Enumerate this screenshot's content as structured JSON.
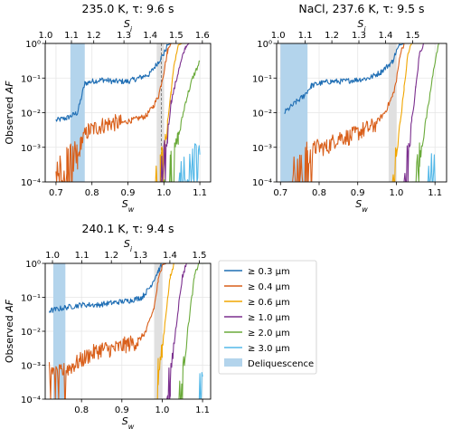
{
  "chart_data": [
    {
      "type": "line",
      "title": "235.0 K, τ: 9.6 s",
      "xlabel": "S",
      "xlabel_sub": "w",
      "ylabel": "Observed ",
      "ylabel_italic": "AF",
      "top_xlabel": "S",
      "top_xlabel_sub": "i",
      "xlim": [
        0.67,
        1.13
      ],
      "ylim": [
        0.0001,
        1
      ],
      "yscale": "log",
      "x_ticks": [
        0.7,
        0.8,
        0.9,
        1.0,
        1.1
      ],
      "x_tick_labels": [
        "0.7",
        "0.8",
        "0.9",
        "1.0",
        "1.1"
      ],
      "top_ticks": [
        0.671,
        0.743,
        0.805,
        0.889,
        0.962,
        1.034,
        1.107
      ],
      "top_tick_labels": [
        "1.0",
        "1.1",
        "1.2",
        "1.3",
        "1.4",
        "1.5",
        "1.6"
      ],
      "y_ticks": [
        0.0001,
        0.001,
        0.01,
        0.1,
        1
      ],
      "y_tick_labels": [
        "10⁻⁴",
        "10⁻³",
        "10⁻²",
        "10⁻¹",
        "10⁰"
      ],
      "deliquescence_band": [
        0.74,
        0.78
      ],
      "grey_band": [
        0.98,
        1.0
      ],
      "dashed_line_x": 0.993,
      "series": [
        {
          "name": "≥ 0.3 µm",
          "color": "#1f6eb4",
          "points": [
            [
              0.7,
              0.006
            ],
            [
              0.73,
              0.007
            ],
            [
              0.76,
              0.01
            ],
            [
              0.78,
              0.07
            ],
            [
              0.8,
              0.08
            ],
            [
              0.83,
              0.09
            ],
            [
              0.86,
              0.08
            ],
            [
              0.9,
              0.08
            ],
            [
              0.93,
              0.1
            ],
            [
              0.96,
              0.13
            ],
            [
              0.985,
              0.3
            ],
            [
              1.0,
              0.5
            ],
            [
              1.01,
              0.9
            ],
            [
              1.02,
              1
            ],
            [
              1.11,
              1
            ]
          ]
        },
        {
          "name": "≥ 0.4 µm",
          "color": "#d95f1a",
          "points": [
            [
              0.7,
              0.0003
            ],
            [
              0.73,
              0.0003
            ],
            [
              0.76,
              0.0004
            ],
            [
              0.77,
              0.0015
            ],
            [
              0.79,
              0.003
            ],
            [
              0.82,
              0.004
            ],
            [
              0.85,
              0.005
            ],
            [
              0.88,
              0.005
            ],
            [
              0.91,
              0.006
            ],
            [
              0.95,
              0.008
            ],
            [
              0.97,
              0.015
            ],
            [
              0.985,
              0.03
            ],
            [
              1.0,
              0.15
            ],
            [
              1.01,
              0.6
            ],
            [
              1.02,
              1
            ],
            [
              1.11,
              1
            ]
          ]
        },
        {
          "name": "≥ 0.6 µm",
          "color": "#f0a500",
          "points": [
            [
              0.975,
              0.0001
            ],
            [
              0.99,
              0.0002
            ],
            [
              1.0,
              0.0006
            ],
            [
              1.01,
              0.005
            ],
            [
              1.02,
              0.04
            ],
            [
              1.03,
              0.3
            ],
            [
              1.04,
              0.9
            ],
            [
              1.05,
              1
            ],
            [
              1.11,
              1
            ]
          ]
        },
        {
          "name": "≥ 1.0 µm",
          "color": "#7b2f8e",
          "points": [
            [
              0.99,
              0.0001
            ],
            [
              1.0,
              0.0003
            ],
            [
              1.01,
              0.002
            ],
            [
              1.02,
              0.02
            ],
            [
              1.04,
              0.15
            ],
            [
              1.06,
              0.8
            ],
            [
              1.07,
              1
            ],
            [
              1.11,
              1
            ]
          ]
        },
        {
          "name": "≥ 2.0 µm",
          "color": "#6aaa3a",
          "points": [
            [
              1.0,
              0.0001
            ],
            [
              1.02,
              0.0003
            ],
            [
              1.04,
              0.002
            ],
            [
              1.06,
              0.02
            ],
            [
              1.08,
              0.1
            ],
            [
              1.1,
              0.3
            ]
          ]
        },
        {
          "name": "≥ 3.0 µm",
          "color": "#54b8e8",
          "points": [
            [
              1.04,
              0.0001
            ],
            [
              1.06,
              0.0002
            ],
            [
              1.08,
              0.0003
            ],
            [
              1.1,
              0.0004
            ]
          ]
        }
      ]
    },
    {
      "type": "line",
      "title": "NaCl, 237.6 K, τ: 9.5 s",
      "xlabel": "S",
      "xlabel_sub": "w",
      "top_xlabel": "S",
      "top_xlabel_sub": "i",
      "xlim": [
        0.69,
        1.13
      ],
      "ylim": [
        0.0001,
        1
      ],
      "yscale": "log",
      "x_ticks": [
        0.7,
        0.8,
        0.9,
        1.0,
        1.1
      ],
      "x_tick_labels": [
        "0.7",
        "0.8",
        "0.9",
        "1.0",
        "1.1"
      ],
      "top_ticks": [
        0.694,
        0.764,
        0.833,
        0.903,
        0.972,
        1.042
      ],
      "top_tick_labels": [
        "1.0",
        "1.1",
        "1.2",
        "1.3",
        "1.4",
        "1.5"
      ],
      "y_ticks": [
        0.0001,
        0.001,
        0.01,
        0.1,
        1
      ],
      "y_tick_labels": [
        "10⁻⁴",
        "10⁻³",
        "10⁻²",
        "10⁻¹",
        "10⁰"
      ],
      "deliquescence_band": [
        0.7,
        0.77
      ],
      "grey_band": [
        0.98,
        1.0
      ],
      "series": [
        {
          "name": "≥ 0.3 µm",
          "color": "#1f6eb4",
          "points": [
            [
              0.71,
              0.01
            ],
            [
              0.74,
              0.02
            ],
            [
              0.76,
              0.03
            ],
            [
              0.78,
              0.06
            ],
            [
              0.8,
              0.07
            ],
            [
              0.83,
              0.08
            ],
            [
              0.86,
              0.08
            ],
            [
              0.9,
              0.09
            ],
            [
              0.93,
              0.1
            ],
            [
              0.96,
              0.15
            ],
            [
              0.99,
              0.3
            ],
            [
              1.0,
              0.6
            ],
            [
              1.01,
              0.9
            ],
            [
              1.02,
              1
            ],
            [
              1.11,
              1
            ]
          ]
        },
        {
          "name": "≥ 0.4 µm",
          "color": "#d95f1a",
          "points": [
            [
              0.72,
              0.0002
            ],
            [
              0.75,
              0.0002
            ],
            [
              0.77,
              0.0004
            ],
            [
              0.79,
              0.001
            ],
            [
              0.82,
              0.001
            ],
            [
              0.85,
              0.002
            ],
            [
              0.88,
              0.002
            ],
            [
              0.91,
              0.003
            ],
            [
              0.94,
              0.004
            ],
            [
              0.97,
              0.01
            ],
            [
              0.99,
              0.03
            ],
            [
              1.0,
              0.08
            ],
            [
              1.01,
              0.5
            ],
            [
              1.02,
              1
            ],
            [
              1.11,
              1
            ]
          ]
        },
        {
          "name": "≥ 0.6 µm",
          "color": "#f0a500",
          "points": [
            [
              0.99,
              0.0001
            ],
            [
              1.0,
              0.0005
            ],
            [
              1.01,
              0.005
            ],
            [
              1.02,
              0.05
            ],
            [
              1.03,
              0.5
            ],
            [
              1.04,
              1
            ],
            [
              1.11,
              1
            ]
          ]
        },
        {
          "name": "≥ 1.0 µm",
          "color": "#7b2f8e",
          "points": [
            [
              1.02,
              0.0001
            ],
            [
              1.03,
              0.0005
            ],
            [
              1.04,
              0.005
            ],
            [
              1.05,
              0.05
            ],
            [
              1.06,
              0.5
            ],
            [
              1.07,
              1
            ],
            [
              1.11,
              1
            ]
          ]
        },
        {
          "name": "≥ 2.0 µm",
          "color": "#6aaa3a",
          "points": [
            [
              1.04,
              0.0001
            ],
            [
              1.06,
              0.0005
            ],
            [
              1.08,
              0.01
            ],
            [
              1.1,
              0.3
            ],
            [
              1.11,
              1
            ]
          ]
        },
        {
          "name": "≥ 3.0 µm",
          "color": "#54b8e8",
          "points": [
            [
              1.08,
              0.0001
            ],
            [
              1.1,
              0.0003
            ]
          ]
        }
      ]
    },
    {
      "type": "line",
      "title": "240.1 K, τ: 9.4 s",
      "xlabel": "S",
      "xlabel_sub": "w",
      "ylabel": "Observed ",
      "ylabel_italic": "AF",
      "top_xlabel": "S",
      "top_xlabel_sub": "i",
      "xlim": [
        0.71,
        1.12
      ],
      "ylim": [
        0.0001,
        1
      ],
      "yscale": "log",
      "x_ticks": [
        0.8,
        0.9,
        1.0,
        1.1
      ],
      "x_tick_labels": [
        "0.8",
        "0.9",
        "1.0",
        "1.1"
      ],
      "top_ticks": [
        0.728,
        0.801,
        0.874,
        0.946,
        1.019,
        1.092
      ],
      "top_tick_labels": [
        "1.0",
        "1.1",
        "1.2",
        "1.3",
        "1.4",
        "1.5"
      ],
      "y_ticks": [
        0.0001,
        0.001,
        0.01,
        0.1,
        1
      ],
      "y_tick_labels": [
        "10⁻⁴",
        "10⁻³",
        "10⁻²",
        "10⁻¹",
        "10⁰"
      ],
      "deliquescence_band": [
        0.73,
        0.76
      ],
      "grey_band": [
        0.98,
        1.0
      ],
      "series": [
        {
          "name": "≥ 0.3 µm",
          "color": "#1f6eb4",
          "points": [
            [
              0.72,
              0.04
            ],
            [
              0.76,
              0.05
            ],
            [
              0.8,
              0.06
            ],
            [
              0.84,
              0.06
            ],
            [
              0.88,
              0.07
            ],
            [
              0.92,
              0.08
            ],
            [
              0.95,
              0.1
            ],
            [
              0.97,
              0.2
            ],
            [
              0.99,
              0.6
            ],
            [
              1.0,
              0.9
            ],
            [
              1.01,
              1
            ],
            [
              1.11,
              1
            ]
          ]
        },
        {
          "name": "≥ 0.4 µm",
          "color": "#d95f1a",
          "points": [
            [
              0.72,
              0.0005
            ],
            [
              0.75,
              0.0006
            ],
            [
              0.78,
              0.001
            ],
            [
              0.82,
              0.002
            ],
            [
              0.85,
              0.003
            ],
            [
              0.88,
              0.003
            ],
            [
              0.91,
              0.004
            ],
            [
              0.94,
              0.005
            ],
            [
              0.96,
              0.01
            ],
            [
              0.98,
              0.05
            ],
            [
              0.99,
              0.3
            ],
            [
              1.0,
              0.9
            ],
            [
              1.01,
              1
            ],
            [
              1.11,
              1
            ]
          ]
        },
        {
          "name": "≥ 0.6 µm",
          "color": "#f0a500",
          "points": [
            [
              0.98,
              0.0001
            ],
            [
              0.99,
              0.0005
            ],
            [
              1.0,
              0.003
            ],
            [
              1.01,
              0.04
            ],
            [
              1.02,
              0.4
            ],
            [
              1.03,
              1
            ],
            [
              1.11,
              1
            ]
          ]
        },
        {
          "name": "≥ 1.0 µm",
          "color": "#7b2f8e",
          "points": [
            [
              1.01,
              0.0001
            ],
            [
              1.02,
              0.0005
            ],
            [
              1.03,
              0.005
            ],
            [
              1.04,
              0.05
            ],
            [
              1.05,
              0.4
            ],
            [
              1.06,
              1
            ],
            [
              1.11,
              1
            ]
          ]
        },
        {
          "name": "≥ 2.0 µm",
          "color": "#6aaa3a",
          "points": [
            [
              1.04,
              0.0001
            ],
            [
              1.05,
              0.0005
            ],
            [
              1.06,
              0.005
            ],
            [
              1.07,
              0.05
            ],
            [
              1.08,
              0.4
            ],
            [
              1.09,
              1
            ],
            [
              1.11,
              1
            ]
          ]
        },
        {
          "name": "≥ 3.0 µm",
          "color": "#54b8e8",
          "points": [
            [
              1.09,
              0.0001
            ],
            [
              1.1,
              0.0003
            ]
          ]
        }
      ]
    }
  ],
  "legend": {
    "items": [
      {
        "label": "≥ 0.3 µm",
        "color": "#1f6eb4",
        "kind": "line"
      },
      {
        "label": "≥ 0.4 µm",
        "color": "#d95f1a",
        "kind": "line"
      },
      {
        "label": "≥ 0.6 µm",
        "color": "#f0a500",
        "kind": "line"
      },
      {
        "label": "≥ 1.0 µm",
        "color": "#7b2f8e",
        "kind": "line"
      },
      {
        "label": "≥ 2.0 µm",
        "color": "#6aaa3a",
        "kind": "line"
      },
      {
        "label": "≥ 3.0 µm",
        "color": "#54b8e8",
        "kind": "line"
      },
      {
        "label": "Deliquescence",
        "color": "#b3d4ec",
        "kind": "patch"
      }
    ]
  },
  "colors": {
    "deliquescence": "#b3d4ec",
    "grey_band": "#e0e0e0",
    "grid": "#e6e6e6"
  }
}
